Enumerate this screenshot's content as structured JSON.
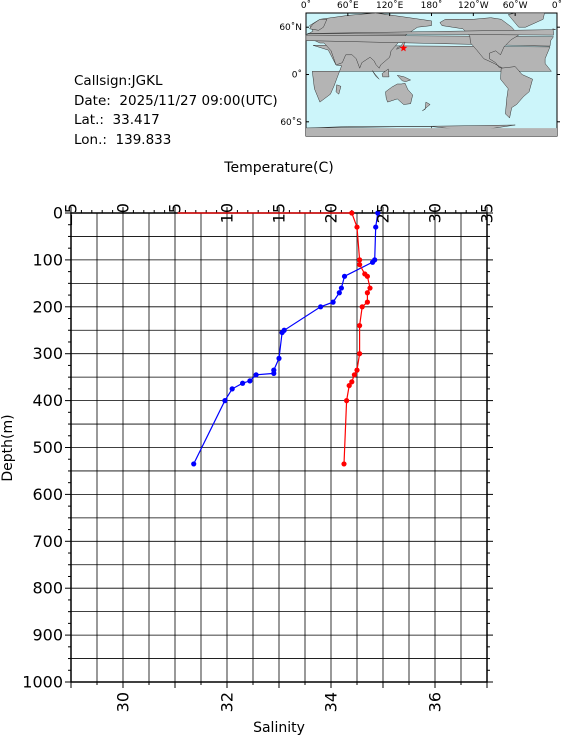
{
  "info": {
    "callsign": "Callsign:JGKL",
    "date": "Date:  2025/11/27 09:00(UTC)",
    "lat": "Lat.:  33.417",
    "lon": "Lon.:  139.833"
  },
  "map": {
    "lon_labels": [
      "0˚",
      "60˚E",
      "120˚E",
      "180˚",
      "120˚W",
      "60˚W",
      "0˚"
    ],
    "lat_labels": [
      "60˚N",
      "0˚",
      "60˚S"
    ],
    "ocean_color": "#ccf5fa",
    "land_color": "#b4b4b4",
    "marker_color": "#ff0000",
    "station": {
      "lat": 33.417,
      "lon": 139.833
    }
  },
  "chart_data": {
    "type": "line",
    "xlabel_top": "Temperature(C)",
    "xlabel_bottom": "Salinity",
    "ylabel": "Depth(m)",
    "temperature_ticks": [
      "−5",
      "0",
      "5",
      "10",
      "15",
      "20",
      "25",
      "30",
      "35"
    ],
    "temperature_range": [
      -5,
      35
    ],
    "salinity_ticks": [
      "30",
      "32",
      "34",
      "36"
    ],
    "salinity_range": [
      29,
      37
    ],
    "depth_ticks": [
      "0",
      "100",
      "200",
      "300",
      "400",
      "500",
      "600",
      "700",
      "800",
      "900",
      "1000"
    ],
    "depth_range": [
      0,
      1000
    ],
    "grid": true,
    "series": [
      {
        "key": "temperature",
        "color": "#0000ff",
        "points": [
          [
            24.5,
            0
          ],
          [
            24.3,
            30
          ],
          [
            24.2,
            100
          ],
          [
            24.0,
            105
          ],
          [
            21.3,
            135
          ],
          [
            21.0,
            160
          ],
          [
            20.8,
            170
          ],
          [
            20.2,
            190
          ],
          [
            19.0,
            200
          ],
          [
            15.5,
            250
          ],
          [
            15.3,
            255
          ],
          [
            15.0,
            310
          ],
          [
            14.5,
            335
          ],
          [
            14.5,
            342
          ],
          [
            12.8,
            345
          ],
          [
            12.2,
            358
          ],
          [
            11.5,
            363
          ],
          [
            10.5,
            375
          ],
          [
            9.8,
            400
          ],
          [
            6.8,
            535
          ]
        ]
      },
      {
        "key": "salinity",
        "color": "#ff0000",
        "points": [
          [
            31.05,
            0
          ],
          [
            34.4,
            0
          ],
          [
            34.5,
            30
          ],
          [
            34.55,
            100
          ],
          [
            34.55,
            110
          ],
          [
            34.65,
            130
          ],
          [
            34.7,
            135
          ],
          [
            34.75,
            160
          ],
          [
            34.7,
            170
          ],
          [
            34.7,
            190
          ],
          [
            34.6,
            200
          ],
          [
            34.55,
            240
          ],
          [
            34.55,
            300
          ],
          [
            34.5,
            335
          ],
          [
            34.45,
            345
          ],
          [
            34.4,
            360
          ],
          [
            34.35,
            368
          ],
          [
            34.3,
            400
          ],
          [
            34.25,
            535
          ]
        ]
      }
    ]
  }
}
